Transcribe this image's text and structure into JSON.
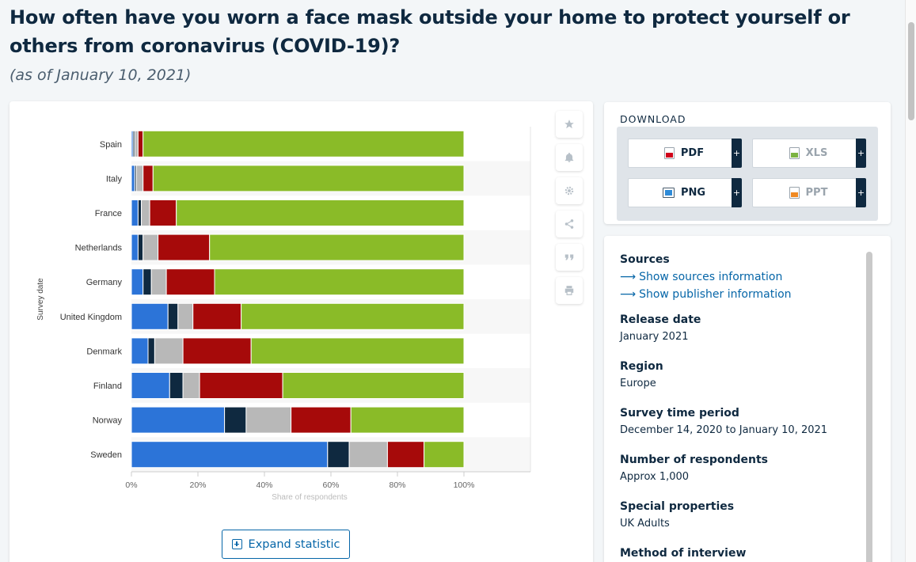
{
  "header": {
    "title": "How often have you worn a face mask outside your home to protect yourself or others from coronavirus (COVID-19)?",
    "subtitle": "(as of January 10, 2021)"
  },
  "chart_data": {
    "type": "bar",
    "orientation": "horizontal",
    "stacked": true,
    "categories": [
      "Spain",
      "Italy",
      "France",
      "Netherlands",
      "Germany",
      "United Kingdom",
      "Denmark",
      "Finland",
      "Norway",
      "Sweden"
    ],
    "series": [
      {
        "values": [
          0.5,
          1,
          2,
          2,
          3.5,
          11,
          5,
          11.5,
          28,
          59
        ],
        "color": "#2c74d8"
      },
      {
        "values": [
          0.5,
          0.5,
          1,
          1.5,
          2.5,
          3,
          2,
          4,
          6.5,
          6.5
        ],
        "color": "#0f2940"
      },
      {
        "values": [
          1,
          2,
          2.5,
          4.5,
          4.5,
          4.5,
          8.5,
          5,
          13.5,
          11.5
        ],
        "color": "#b8b8b8"
      },
      {
        "values": [
          1.5,
          3,
          8,
          15.5,
          14.5,
          14.5,
          20.5,
          25,
          18,
          11
        ],
        "color": "#a60a0a"
      },
      {
        "values": [
          96.5,
          93.5,
          86.5,
          76.5,
          75,
          67,
          64,
          54.5,
          34,
          12
        ],
        "color": "#8abb28"
      }
    ],
    "xlabel": "Share of respondents",
    "ylabel": "Survey date",
    "xlim": [
      0,
      120
    ],
    "xticks": [
      "0%",
      "20%",
      "40%",
      "60%",
      "80%",
      "100%"
    ],
    "grid": true,
    "legend": "none"
  },
  "toolbar": {
    "icons": [
      "star-icon",
      "bell-icon",
      "gear-icon",
      "share-icon",
      "quote-icon",
      "print-icon"
    ]
  },
  "expand": {
    "label": "Expand statistic"
  },
  "download": {
    "title": "DOWNLOAD",
    "buttons": [
      {
        "label": "PDF",
        "plus": "+"
      },
      {
        "label": "XLS",
        "plus": "+"
      },
      {
        "label": "PNG",
        "plus": "+"
      },
      {
        "label": "PPT",
        "plus": "+"
      }
    ]
  },
  "info": {
    "sources_title": "Sources",
    "show_sources": "Show sources information",
    "show_publisher": "Show publisher information",
    "release_date_title": "Release date",
    "release_date": "January 2021",
    "region_title": "Region",
    "region": "Europe",
    "survey_period_title": "Survey time period",
    "survey_period": "December 14, 2020 to January 10, 2021",
    "respondents_title": "Number of respondents",
    "respondents": "Approx 1,000",
    "special_title": "Special properties",
    "special": "UK Adults",
    "method_title": "Method of interview"
  }
}
